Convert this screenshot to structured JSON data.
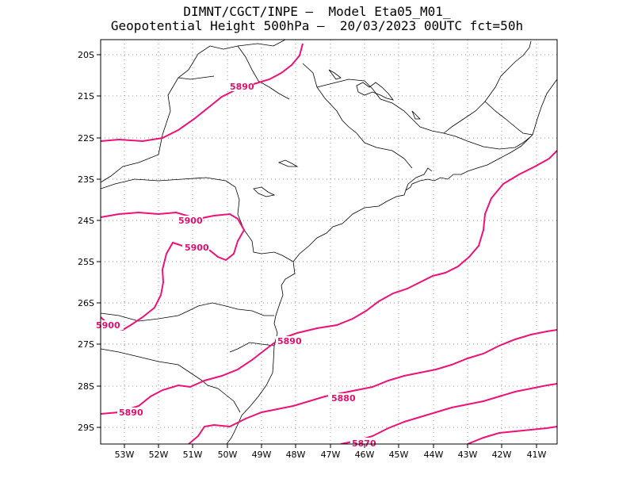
{
  "header": {
    "title_line1": "DIMNT/CGCT/INPE –  Model Eta05_M01_",
    "title_line2": "Geopotential Height 500hPa –  20/03/2023 00UTC fct=50h"
  },
  "axes": {
    "y_labels": [
      "20S",
      "21S",
      "22S",
      "23S",
      "24S",
      "25S",
      "26S",
      "27S",
      "28S",
      "29S"
    ],
    "x_labels": [
      "53W",
      "52W",
      "51W",
      "50W",
      "49W",
      "48W",
      "47W",
      "46W",
      "45W",
      "44W",
      "43W",
      "42W",
      "41W"
    ]
  },
  "contour_labels": [
    "5890",
    "5900",
    "5900",
    "5900",
    "5890",
    "5890",
    "5880",
    "5870"
  ],
  "colors": {
    "contour": "#ee1177",
    "coast": "#000000",
    "grid": "#999999"
  }
}
